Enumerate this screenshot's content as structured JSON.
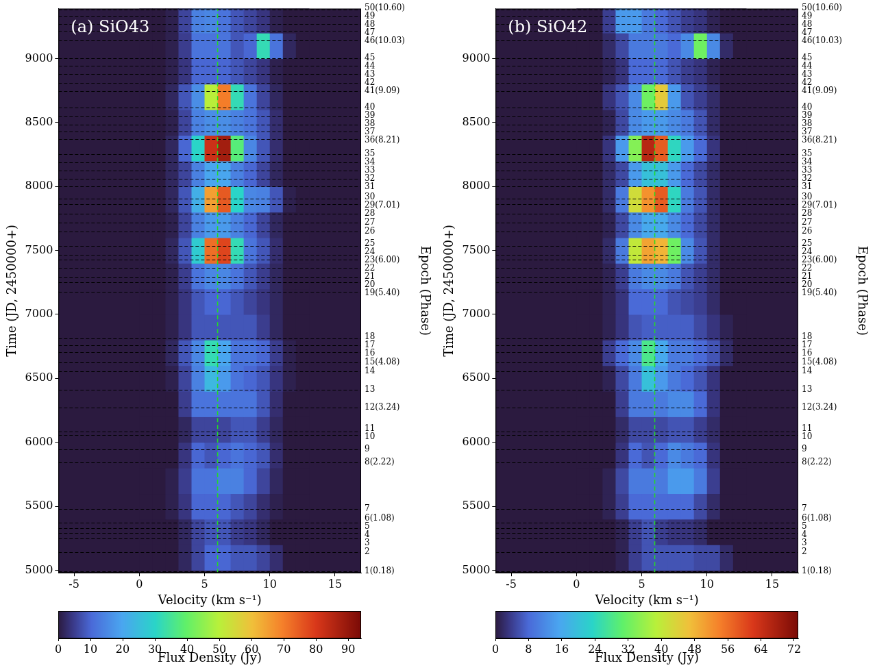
{
  "chart_data": [
    {
      "type": "heatmap",
      "title": "(a) SiO43",
      "x_label": "Velocity (km s⁻¹)",
      "y_label": "Time (JD, 2450000+)",
      "y2_label": "Epoch (Phase)",
      "xlim": [
        -6.2,
        17
      ],
      "xticks": [
        -5,
        0,
        5,
        10,
        15
      ],
      "ylim": [
        4980,
        9390
      ],
      "yticks": [
        5000,
        5500,
        6000,
        6500,
        7000,
        7500,
        8000,
        8500,
        9000
      ],
      "grid": false,
      "x": [
        0.5,
        1.5,
        2.5,
        3.5,
        4.5,
        5.5,
        6.5,
        7.5,
        8.5,
        9.5,
        10.5,
        11.5,
        12.5
      ],
      "y": [
        5100,
        5300,
        5500,
        5700,
        5900,
        6100,
        6300,
        6500,
        6700,
        6900,
        7100,
        7300,
        7500,
        7700,
        7900,
        8100,
        8300,
        8500,
        8700,
        8900,
        9100,
        9300
      ],
      "z": [
        [
          0,
          0,
          0,
          2,
          6,
          10,
          10,
          8,
          8,
          6,
          3,
          0,
          0
        ],
        [
          0,
          0,
          0,
          2,
          6,
          8,
          8,
          5,
          4,
          2,
          0,
          0,
          0
        ],
        [
          0,
          0,
          1,
          4,
          10,
          10,
          10,
          8,
          6,
          3,
          1,
          0,
          0
        ],
        [
          0,
          0,
          1,
          5,
          12,
          12,
          14,
          14,
          10,
          6,
          2,
          0,
          0
        ],
        [
          0,
          0,
          0,
          4,
          10,
          8,
          10,
          12,
          10,
          8,
          3,
          0,
          0
        ],
        [
          0,
          0,
          0,
          2,
          6,
          6,
          6,
          8,
          8,
          5,
          2,
          0,
          0
        ],
        [
          0,
          0,
          0,
          5,
          12,
          12,
          12,
          12,
          12,
          8,
          3,
          0,
          0
        ],
        [
          0,
          0,
          1,
          6,
          14,
          24,
          18,
          12,
          10,
          8,
          4,
          1,
          0
        ],
        [
          0,
          0,
          2,
          8,
          15,
          32,
          20,
          12,
          12,
          10,
          5,
          1,
          0
        ],
        [
          0,
          0,
          1,
          4,
          8,
          8,
          8,
          8,
          8,
          5,
          2,
          0,
          0
        ],
        [
          0,
          0,
          1,
          4,
          8,
          10,
          10,
          8,
          6,
          4,
          2,
          0,
          0
        ],
        [
          0,
          0,
          1,
          5,
          12,
          15,
          15,
          12,
          8,
          5,
          2,
          0,
          0
        ],
        [
          0,
          0,
          2,
          8,
          28,
          72,
          78,
          32,
          12,
          8,
          3,
          0,
          0
        ],
        [
          0,
          0,
          1,
          6,
          14,
          18,
          18,
          14,
          10,
          6,
          2,
          0,
          0
        ],
        [
          0,
          0,
          2,
          8,
          22,
          65,
          75,
          30,
          15,
          14,
          8,
          1,
          0
        ],
        [
          0,
          0,
          2,
          6,
          14,
          20,
          20,
          14,
          10,
          6,
          2,
          0,
          0
        ],
        [
          0,
          0,
          2,
          10,
          30,
          82,
          88,
          38,
          15,
          8,
          3,
          0,
          0
        ],
        [
          0,
          0,
          1,
          6,
          14,
          16,
          16,
          14,
          12,
          8,
          3,
          0,
          0
        ],
        [
          0,
          0,
          2,
          8,
          16,
          50,
          70,
          32,
          12,
          6,
          2,
          0,
          0
        ],
        [
          0,
          0,
          1,
          4,
          10,
          10,
          10,
          8,
          6,
          4,
          1,
          0,
          0
        ],
        [
          0,
          0,
          1,
          5,
          12,
          12,
          12,
          8,
          10,
          32,
          12,
          2,
          0
        ],
        [
          0,
          0,
          1,
          6,
          14,
          15,
          12,
          8,
          6,
          4,
          1,
          0,
          0
        ]
      ],
      "colorbar": {
        "label": "Flux Density (Jy)",
        "range": [
          0,
          94
        ],
        "ticks": [
          0,
          10,
          20,
          30,
          40,
          50,
          60,
          70,
          80,
          90
        ]
      },
      "vline": {
        "x": 6.0,
        "color": "#22dd22",
        "line_style": "dashed"
      },
      "epoch_times": [
        4990,
        5141,
        5250,
        5290,
        5330,
        5370,
        5480,
        5845,
        5944,
        6060,
        6085,
        6272,
        6413,
        6554,
        6627,
        6705,
        6757,
        6815,
        7175,
        7253,
        7290,
        7362,
        7430,
        7467,
        7535,
        7650,
        7717,
        7785,
        7863,
        7905,
        7999,
        8061,
        8124,
        8186,
        8254,
        8369,
        8432,
        8484,
        8546,
        8619,
        8744,
        8807,
        8880,
        8943,
        9000,
        9141,
        9214,
        9271,
        9328,
        9381
      ],
      "epoch_labels": [
        "1(0.18)",
        "2",
        "3",
        "4",
        "5",
        "6(1.08)",
        "7",
        "8(2.22)",
        "9",
        "10",
        "11",
        "12(3.24)",
        "13",
        "14",
        "15(4.08)",
        "16",
        "17",
        "18",
        "19(5.40)",
        "20",
        "21",
        "22",
        "23(6.00)",
        "24",
        "25",
        "26",
        "27",
        "28",
        "29(7.01)",
        "30",
        "31",
        "32",
        "33",
        "34",
        "35",
        "36(8.21)",
        "37",
        "38",
        "39",
        "40",
        "41(9.09)",
        "42",
        "43",
        "44",
        "45",
        "46(10.03)",
        "47",
        "48",
        "49",
        "50(10.60)"
      ]
    },
    {
      "type": "heatmap",
      "title": "(b) SiO42",
      "x_label": "Velocity (km s⁻¹)",
      "y_label": "Time (JD, 2450000+)",
      "y2_label": "Epoch (Phase)",
      "xlim": [
        -6.2,
        17
      ],
      "xticks": [
        -5,
        0,
        5,
        10,
        15
      ],
      "ylim": [
        4980,
        9390
      ],
      "yticks": [
        5000,
        5500,
        6000,
        6500,
        7000,
        7500,
        8000,
        8500,
        9000
      ],
      "grid": false,
      "x": [
        0.5,
        1.5,
        2.5,
        3.5,
        4.5,
        5.5,
        6.5,
        7.5,
        8.5,
        9.5,
        10.5,
        11.5,
        12.5
      ],
      "y": [
        5100,
        5300,
        5500,
        5700,
        5900,
        6100,
        6300,
        6500,
        6700,
        6900,
        7100,
        7300,
        7500,
        7700,
        7900,
        8100,
        8300,
        8500,
        8700,
        8900,
        9100,
        9300
      ],
      "z": [
        [
          0,
          0,
          0,
          1,
          4,
          6,
          6,
          6,
          6,
          5,
          5,
          2,
          0
        ],
        [
          0,
          0,
          0,
          1,
          4,
          6,
          4,
          3,
          3,
          2,
          0,
          0,
          0
        ],
        [
          0,
          0,
          1,
          4,
          8,
          8,
          8,
          8,
          8,
          5,
          2,
          0,
          0
        ],
        [
          0,
          0,
          1,
          5,
          10,
          10,
          10,
          14,
          14,
          10,
          4,
          0,
          0
        ],
        [
          0,
          0,
          0,
          3,
          8,
          6,
          8,
          12,
          10,
          8,
          3,
          0,
          0
        ],
        [
          0,
          0,
          0,
          2,
          5,
          5,
          5,
          6,
          6,
          4,
          2,
          0,
          0
        ],
        [
          0,
          0,
          0,
          4,
          10,
          10,
          10,
          12,
          12,
          8,
          3,
          0,
          0
        ],
        [
          0,
          0,
          1,
          5,
          10,
          20,
          14,
          10,
          8,
          6,
          3,
          0,
          0
        ],
        [
          0,
          0,
          4,
          8,
          12,
          28,
          16,
          10,
          10,
          8,
          6,
          2,
          0
        ],
        [
          0,
          0,
          1,
          3,
          6,
          7,
          7,
          7,
          7,
          5,
          3,
          1,
          0
        ],
        [
          0,
          0,
          1,
          3,
          8,
          8,
          8,
          6,
          5,
          4,
          2,
          0,
          0
        ],
        [
          0,
          0,
          1,
          4,
          10,
          12,
          12,
          10,
          6,
          4,
          2,
          0,
          0
        ],
        [
          0,
          0,
          2,
          10,
          40,
          50,
          48,
          32,
          12,
          6,
          2,
          0,
          0
        ],
        [
          0,
          0,
          1,
          5,
          12,
          16,
          16,
          12,
          8,
          5,
          2,
          0,
          0
        ],
        [
          0,
          0,
          2,
          10,
          42,
          52,
          58,
          24,
          10,
          6,
          2,
          0,
          0
        ],
        [
          0,
          0,
          2,
          5,
          14,
          20,
          20,
          14,
          8,
          5,
          2,
          0,
          0
        ],
        [
          0,
          0,
          3,
          14,
          34,
          66,
          58,
          24,
          14,
          8,
          3,
          0,
          0
        ],
        [
          0,
          0,
          1,
          5,
          12,
          14,
          14,
          12,
          10,
          6,
          2,
          0,
          0
        ],
        [
          0,
          0,
          3,
          6,
          12,
          32,
          45,
          14,
          6,
          4,
          2,
          0,
          0
        ],
        [
          0,
          0,
          1,
          3,
          8,
          8,
          8,
          6,
          4,
          3,
          1,
          0,
          0
        ],
        [
          0,
          0,
          2,
          5,
          10,
          10,
          10,
          8,
          12,
          32,
          12,
          2,
          0
        ],
        [
          0,
          0,
          4,
          14,
          14,
          10,
          8,
          6,
          4,
          3,
          1,
          0,
          0
        ]
      ],
      "colorbar": {
        "label": "Flux Density (Jy)",
        "range": [
          0,
          73
        ],
        "ticks": [
          0,
          8,
          16,
          24,
          32,
          40,
          48,
          56,
          64,
          72
        ]
      },
      "vline": {
        "x": 6.0,
        "color": "#22dd22",
        "line_style": "dashed"
      },
      "epoch_times": [
        4990,
        5141,
        5250,
        5290,
        5330,
        5370,
        5480,
        5845,
        5944,
        6060,
        6085,
        6272,
        6413,
        6554,
        6627,
        6705,
        6757,
        6815,
        7175,
        7253,
        7290,
        7362,
        7430,
        7467,
        7535,
        7650,
        7717,
        7785,
        7863,
        7905,
        7999,
        8061,
        8124,
        8186,
        8254,
        8369,
        8432,
        8484,
        8546,
        8619,
        8744,
        8807,
        8880,
        8943,
        9000,
        9141,
        9214,
        9271,
        9328,
        9381
      ],
      "epoch_labels": [
        "1(0.18)",
        "2",
        "3",
        "4",
        "5",
        "6(1.08)",
        "7",
        "8(2.22)",
        "9",
        "10",
        "11",
        "12(3.24)",
        "13",
        "14",
        "15(4.08)",
        "16",
        "17",
        "18",
        "19(5.40)",
        "20",
        "21",
        "22",
        "23(6.00)",
        "24",
        "25",
        "26",
        "27",
        "28",
        "29(7.01)",
        "30",
        "31",
        "32",
        "33",
        "34",
        "35",
        "36(8.21)",
        "37",
        "38",
        "39",
        "40",
        "41(9.09)",
        "42",
        "43",
        "44",
        "45",
        "46(10.03)",
        "47",
        "48",
        "49",
        "50(10.60)"
      ]
    }
  ]
}
